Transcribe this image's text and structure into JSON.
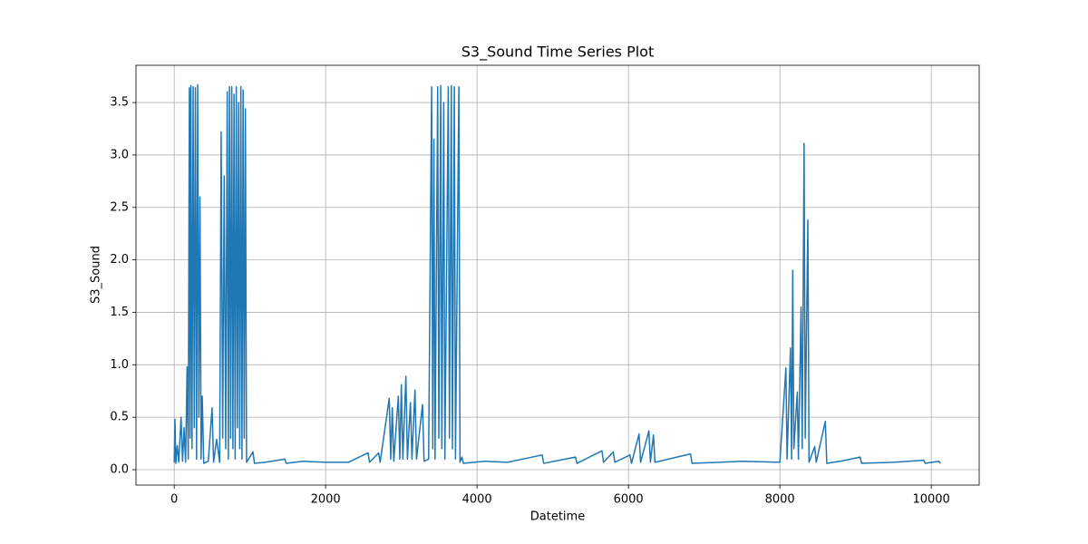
{
  "chart_data": {
    "type": "line",
    "title": "S3_Sound Time Series Plot",
    "x_label": "Datetime",
    "y_label": "S3_Sound",
    "x": [
      0,
      10,
      20,
      40,
      60,
      90,
      110,
      130,
      150,
      170,
      185,
      200,
      210,
      220,
      235,
      250,
      265,
      280,
      295,
      310,
      325,
      340,
      355,
      370,
      390,
      450,
      500,
      520,
      560,
      600,
      620,
      640,
      660,
      680,
      700,
      715,
      730,
      745,
      760,
      775,
      790,
      805,
      820,
      835,
      850,
      865,
      880,
      895,
      910,
      925,
      940,
      955,
      1040,
      1060,
      1200,
      1460,
      1480,
      1700,
      2000,
      2300,
      2560,
      2580,
      2700,
      2720,
      2840,
      2860,
      2880,
      2900,
      2960,
      2980,
      3000,
      3020,
      3060,
      3080,
      3120,
      3140,
      3180,
      3200,
      3280,
      3300,
      3360,
      3400,
      3415,
      3430,
      3445,
      3480,
      3495,
      3520,
      3535,
      3560,
      3575,
      3620,
      3635,
      3660,
      3675,
      3700,
      3715,
      3760,
      3775,
      3800,
      3820,
      4100,
      4400,
      4860,
      4880,
      5300,
      5320,
      5650,
      5670,
      5800,
      5820,
      6020,
      6040,
      6140,
      6160,
      6270,
      6290,
      6330,
      6350,
      6820,
      6840,
      7200,
      7500,
      8000,
      8080,
      8095,
      8140,
      8155,
      8170,
      8185,
      8230,
      8245,
      8280,
      8295,
      8320,
      8335,
      8370,
      8385,
      8460,
      8480,
      8600,
      8620,
      8800,
      9060,
      9080,
      9500,
      9900,
      9920,
      10100,
      10120
    ],
    "series": [
      {
        "name": "S3_Sound",
        "color": "#1f77b4",
        "values": [
          0.07,
          0.48,
          0.06,
          0.23,
          0.07,
          0.5,
          0.08,
          0.4,
          0.07,
          0.98,
          0.1,
          3.64,
          0.3,
          3.66,
          0.2,
          3.65,
          0.4,
          3.64,
          0.1,
          3.67,
          0.5,
          2.6,
          0.1,
          0.7,
          0.06,
          0.08,
          0.59,
          0.07,
          0.29,
          0.07,
          3.22,
          0.3,
          2.8,
          0.2,
          3.6,
          0.1,
          3.65,
          0.3,
          3.65,
          0.2,
          3.58,
          0.1,
          3.65,
          0.4,
          3.5,
          0.2,
          3.65,
          0.1,
          3.62,
          0.3,
          3.44,
          0.07,
          0.17,
          0.06,
          0.07,
          0.1,
          0.06,
          0.08,
          0.07,
          0.07,
          0.16,
          0.07,
          0.16,
          0.07,
          0.68,
          0.1,
          0.59,
          0.08,
          0.7,
          0.1,
          0.81,
          0.1,
          0.89,
          0.1,
          0.64,
          0.1,
          0.76,
          0.1,
          0.62,
          0.08,
          0.1,
          3.65,
          0.2,
          3.15,
          0.1,
          3.65,
          0.3,
          3.66,
          0.2,
          3.5,
          0.1,
          3.65,
          0.3,
          3.66,
          0.2,
          3.65,
          0.1,
          3.65,
          0.07,
          0.12,
          0.06,
          0.08,
          0.07,
          0.14,
          0.06,
          0.12,
          0.06,
          0.18,
          0.07,
          0.17,
          0.07,
          0.14,
          0.06,
          0.34,
          0.07,
          0.37,
          0.07,
          0.33,
          0.07,
          0.15,
          0.06,
          0.07,
          0.08,
          0.07,
          0.97,
          0.1,
          1.16,
          0.1,
          1.9,
          0.2,
          0.74,
          0.1,
          1.55,
          0.2,
          3.11,
          0.3,
          2.38,
          0.07,
          0.22,
          0.07,
          0.46,
          0.06,
          0.08,
          0.12,
          0.06,
          0.07,
          0.09,
          0.06,
          0.08,
          0.06
        ]
      }
    ],
    "xlim": [
      -505,
      10633
    ],
    "ylim": [
      -0.147,
      3.855
    ],
    "xticks": [
      0,
      2000,
      4000,
      6000,
      8000,
      10000
    ],
    "yticks": [
      {
        "value": 0,
        "label": "0.0"
      },
      0.5,
      {
        "value": 1,
        "label": "1.0"
      },
      1.5,
      {
        "value": 2,
        "label": "2.0"
      },
      2.5,
      {
        "value": 3,
        "label": "3.0"
      },
      3.5
    ],
    "grid": true
  }
}
